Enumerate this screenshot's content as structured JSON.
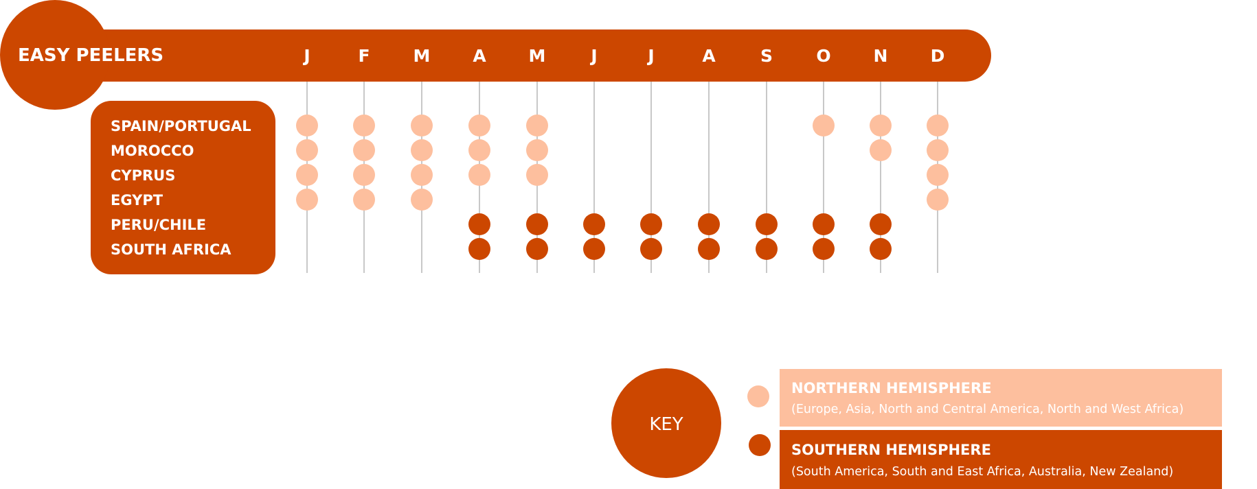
{
  "title": "EASY PEELERS",
  "months": [
    "J",
    "F",
    "M",
    "A",
    "M",
    "J",
    "J",
    "A",
    "S",
    "O",
    "N",
    "D"
  ],
  "countries": [
    "SPAIN/PORTUGAL",
    "MOROCCO",
    "CYPRUS",
    "EGYPT",
    "PERU/CHILE",
    "SOUTH AFRICA"
  ],
  "colors": {
    "primary": "#cc4700",
    "northern": "#fdbf9e",
    "southern": "#cc4700",
    "grid": "#c8c8c8",
    "text_on_dark": "#ffffff"
  },
  "availability": [
    {
      "country": "SPAIN/PORTUGAL",
      "hemisphere": "northern",
      "months": [
        1,
        2,
        3,
        4,
        5,
        10,
        11,
        12
      ]
    },
    {
      "country": "MOROCCO",
      "hemisphere": "northern",
      "months": [
        1,
        2,
        3,
        4,
        5,
        11,
        12
      ]
    },
    {
      "country": "CYPRUS",
      "hemisphere": "northern",
      "months": [
        1,
        2,
        3,
        4,
        5,
        12
      ]
    },
    {
      "country": "EGYPT",
      "hemisphere": "northern",
      "months": [
        1,
        2,
        3,
        12
      ]
    },
    {
      "country": "PERU/CHILE",
      "hemisphere": "southern",
      "months": [
        4,
        5,
        6,
        7,
        8,
        9,
        10,
        11
      ]
    },
    {
      "country": "SOUTH AFRICA",
      "hemisphere": "southern",
      "months": [
        4,
        5,
        6,
        7,
        8,
        9,
        10,
        11
      ]
    }
  ],
  "key": {
    "label": "KEY",
    "northern": {
      "title": "NORTHERN HEMISPHERE",
      "subtitle": "(Europe, Asia, North and Central America, North and West Africa)"
    },
    "southern": {
      "title": "SOUTHERN HEMISPHERE",
      "subtitle": "(South America, South and East Africa, Australia, New Zealand)"
    }
  }
}
